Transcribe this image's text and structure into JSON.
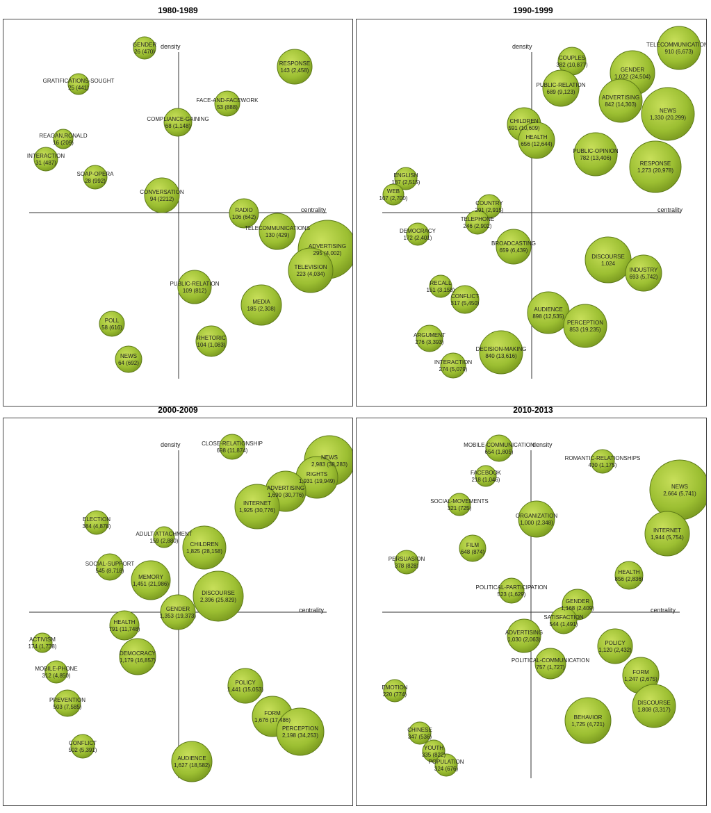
{
  "panels": [
    {
      "title": "1980-1989",
      "y_axis_label": "density",
      "x_axis_label": "centrality",
      "nodes": [
        {
          "name": "GENDER",
          "stats": "26 (470)"
        },
        {
          "name": "RESPONSE",
          "stats": "143 (2,458)"
        },
        {
          "name": "GRATIFICATIONS-SOUGHT",
          "stats": "25 (441)"
        },
        {
          "name": "FACE-AND-FACEWORK",
          "stats": "53 (888)"
        },
        {
          "name": "COMPLIANCE-GAINING",
          "stats": "68 (1,148)"
        },
        {
          "name": "REAGAN,RONALD",
          "stats": "16 (209)"
        },
        {
          "name": "INTERACTION",
          "stats": "31 (487)"
        },
        {
          "name": "SOAP-OPERA",
          "stats": "28 (992)"
        },
        {
          "name": "CONVERSATION",
          "stats": "94 (2212)"
        },
        {
          "name": "RADIO",
          "stats": "106 (642)"
        },
        {
          "name": "TELECOMMUNICATIONS",
          "stats": "130 (429)"
        },
        {
          "name": "ADVERTISING",
          "stats": "295 (4,002)"
        },
        {
          "name": "TELEVISION",
          "stats": "223 (4,034)"
        },
        {
          "name": "PUBLIC-RELATION",
          "stats": "109 (812)"
        },
        {
          "name": "MEDIA",
          "stats": "185 (2,308)"
        },
        {
          "name": "POLL",
          "stats": "58 (616)"
        },
        {
          "name": "RHETORIC",
          "stats": "104 (1,083)"
        },
        {
          "name": "NEWS",
          "stats": "64 (692)"
        }
      ]
    },
    {
      "title": "1990-1999",
      "y_axis_label": "density",
      "x_axis_label": "centrality",
      "nodes": [
        {
          "name": "TELECOMMUNICATIONS",
          "stats": "910 (6,673)"
        },
        {
          "name": "COUPLES",
          "stats": "382 (10,877)"
        },
        {
          "name": "GENDER",
          "stats": "1,022 (24,504)"
        },
        {
          "name": "PUBLIC-RELATION",
          "stats": "689 (9,123)"
        },
        {
          "name": "ADVERTISING",
          "stats": "842 (14,303)"
        },
        {
          "name": "NEWS",
          "stats": "1,330 (20,299)"
        },
        {
          "name": "CHILDREN",
          "stats": "591 (10,609)"
        },
        {
          "name": "HEALTH",
          "stats": "656 (12,644)"
        },
        {
          "name": "PUBLIC-OPINION",
          "stats": "782 (13,406)"
        },
        {
          "name": "RESPONSE",
          "stats": "1,273 (20,978)"
        },
        {
          "name": "ENGLISH",
          "stats": "187 (2,515)"
        },
        {
          "name": "WEB",
          "stats": "107 (2,700)"
        },
        {
          "name": "COUNTRY",
          "stats": "291 (2,915)"
        },
        {
          "name": "TELEPHONE",
          "stats": "246 (2,902)"
        },
        {
          "name": "DEMOCRACY",
          "stats": "172 (2,401)"
        },
        {
          "name": "BROADCASTING",
          "stats": "659 (6,439)"
        },
        {
          "name": "DISCOURSE",
          "stats": "1,024"
        },
        {
          "name": "INDUSTRY",
          "stats": "693 (5,742)"
        },
        {
          "name": "RECALL",
          "stats": "151 (3,158)"
        },
        {
          "name": "CONFLICT",
          "stats": "317 (5,450)"
        },
        {
          "name": "AUDIENCE",
          "stats": "898 (12,535)"
        },
        {
          "name": "PERCEPTION",
          "stats": "853 (19,235)"
        },
        {
          "name": "ARGUMENT",
          "stats": "276 (3,393)"
        },
        {
          "name": "DECISION-MAKING",
          "stats": "840 (13,616)"
        },
        {
          "name": "INTERACTION",
          "stats": "274 (5,079)"
        }
      ]
    },
    {
      "title": "2000-2009",
      "y_axis_label": "density",
      "x_axis_label": "centrality",
      "nodes": [
        {
          "name": "NEWS",
          "stats": "2,983 (38,283)"
        },
        {
          "name": "CLOSE-RELATIONSHIP",
          "stats": "698 (11,874)"
        },
        {
          "name": "RIGHTS",
          "stats": "1,931 (19,949)"
        },
        {
          "name": "ADVERTISING",
          "stats": "1,690 (30,776)"
        },
        {
          "name": "INTERNET",
          "stats": "1,925 (30,776)"
        },
        {
          "name": "ELECTION",
          "stats": "384 (4,878)"
        },
        {
          "name": "ADULT-ATTACHMENT",
          "stats": "159 (2,880)"
        },
        {
          "name": "CHILDREN",
          "stats": "1,825 (28,158)"
        },
        {
          "name": "SOCIAL-SUPPORT",
          "stats": "545 (8,718)"
        },
        {
          "name": "MEMORY",
          "stats": "1,451 (21,986)"
        },
        {
          "name": "DISCOURSE",
          "stats": "2,396 (25,829)"
        },
        {
          "name": "GENDER",
          "stats": "1,353 (19,373)"
        },
        {
          "name": "HEALTH",
          "stats": "791 (11,748)"
        },
        {
          "name": "ACTIVISM",
          "stats": "174 (1,738)"
        },
        {
          "name": "DEMOCRACY",
          "stats": "1,179 (16,857)"
        },
        {
          "name": "MOBILE-PHONE",
          "stats": "312 (4,850)"
        },
        {
          "name": "POLICY",
          "stats": "1,441 (15,053)"
        },
        {
          "name": "PREVENTION",
          "stats": "503 (7,585)"
        },
        {
          "name": "FORM",
          "stats": "1,676 (17,486)"
        },
        {
          "name": "PERCEPTION",
          "stats": "2,198 (34,253)"
        },
        {
          "name": "CONFLICT",
          "stats": "502 (5,391)"
        },
        {
          "name": "AUDIENCE",
          "stats": "1,627 (18,582)"
        }
      ]
    },
    {
      "title": "2010-2013",
      "y_axis_label": "density",
      "x_axis_label": "centrality",
      "nodes": [
        {
          "name": "MOBILE-COMMUNICATION",
          "stats": "654 (1,805)"
        },
        {
          "name": "ROMANTIC-RELATIONSHIPS",
          "stats": "430 (1,175)"
        },
        {
          "name": "FACEBOOK",
          "stats": "218 (1,046)"
        },
        {
          "name": "NEWS",
          "stats": "2,664 (5,741)"
        },
        {
          "name": "SOCIAL-MOVEMENTS",
          "stats": "321 (725)"
        },
        {
          "name": "ORGANIZATION",
          "stats": "1,000 (2,348)"
        },
        {
          "name": "INTERNET",
          "stats": "1,944 (5,754)"
        },
        {
          "name": "FILM",
          "stats": "648 (874)"
        },
        {
          "name": "PERSUASION",
          "stats": "378 (828)"
        },
        {
          "name": "HEALTH",
          "stats": "856 (2,836)"
        },
        {
          "name": "POLITICAL-PARTICIPATION",
          "stats": "523 (1,629)"
        },
        {
          "name": "GENDER",
          "stats": "1,168 (2,409)"
        },
        {
          "name": "SATISFACTION",
          "stats": "544 (1,491)"
        },
        {
          "name": "ADVERTISING",
          "stats": "1,030 (2,063)"
        },
        {
          "name": "POLICY",
          "stats": "1,120 (2,432)"
        },
        {
          "name": "POLITICAL-COMMUNICATION",
          "stats": "757 (1,727)"
        },
        {
          "name": "FORM",
          "stats": "1,247 (2,675)"
        },
        {
          "name": "EMOTION",
          "stats": "220 (774)"
        },
        {
          "name": "DISCOURSE",
          "stats": "1,808 (3,317)"
        },
        {
          "name": "BEHAVIOR",
          "stats": "1,725 (4,721)"
        },
        {
          "name": "CHINESE",
          "stats": "347 (536)"
        },
        {
          "name": "YOUTH",
          "stats": "335 (822)"
        },
        {
          "name": "POPULATION",
          "stats": "324 (676)"
        }
      ]
    }
  ]
}
